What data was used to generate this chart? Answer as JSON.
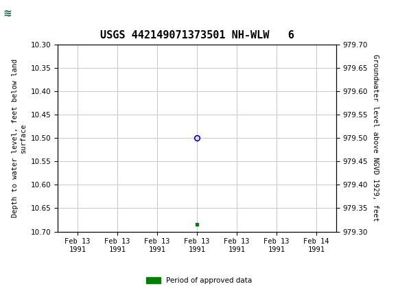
{
  "title": "USGS 442149071373501 NH-WLW   6",
  "ylabel_left": "Depth to water level, feet below land\nsurface",
  "ylabel_right": "Groundwater level above NGVD 1929, feet",
  "ylim_left": [
    10.7,
    10.3
  ],
  "ylim_right": [
    979.3,
    979.7
  ],
  "yticks_left": [
    10.3,
    10.35,
    10.4,
    10.45,
    10.5,
    10.55,
    10.6,
    10.65,
    10.7
  ],
  "yticks_right": [
    979.7,
    979.65,
    979.6,
    979.55,
    979.5,
    979.45,
    979.4,
    979.35,
    979.3
  ],
  "data_point_x": 3.0,
  "data_point_y": 10.5,
  "green_square_x": 3.0,
  "green_square_y": 10.685,
  "background_color": "#ffffff",
  "header_color": "#1a6b3c",
  "grid_color": "#c8c8c8",
  "circle_color": "#0000cc",
  "green_color": "#008000",
  "title_fontsize": 11,
  "axis_fontsize": 7.5,
  "tick_fontsize": 7.5,
  "legend_label": "Period of approved data",
  "xtick_labels": [
    "Feb 13\n1991",
    "Feb 13\n1991",
    "Feb 13\n1991",
    "Feb 13\n1991",
    "Feb 13\n1991",
    "Feb 13\n1991",
    "Feb 14\n1991"
  ],
  "xtick_positions": [
    0,
    1,
    2,
    3,
    4,
    5,
    6
  ],
  "xlim": [
    -0.5,
    6.5
  ]
}
